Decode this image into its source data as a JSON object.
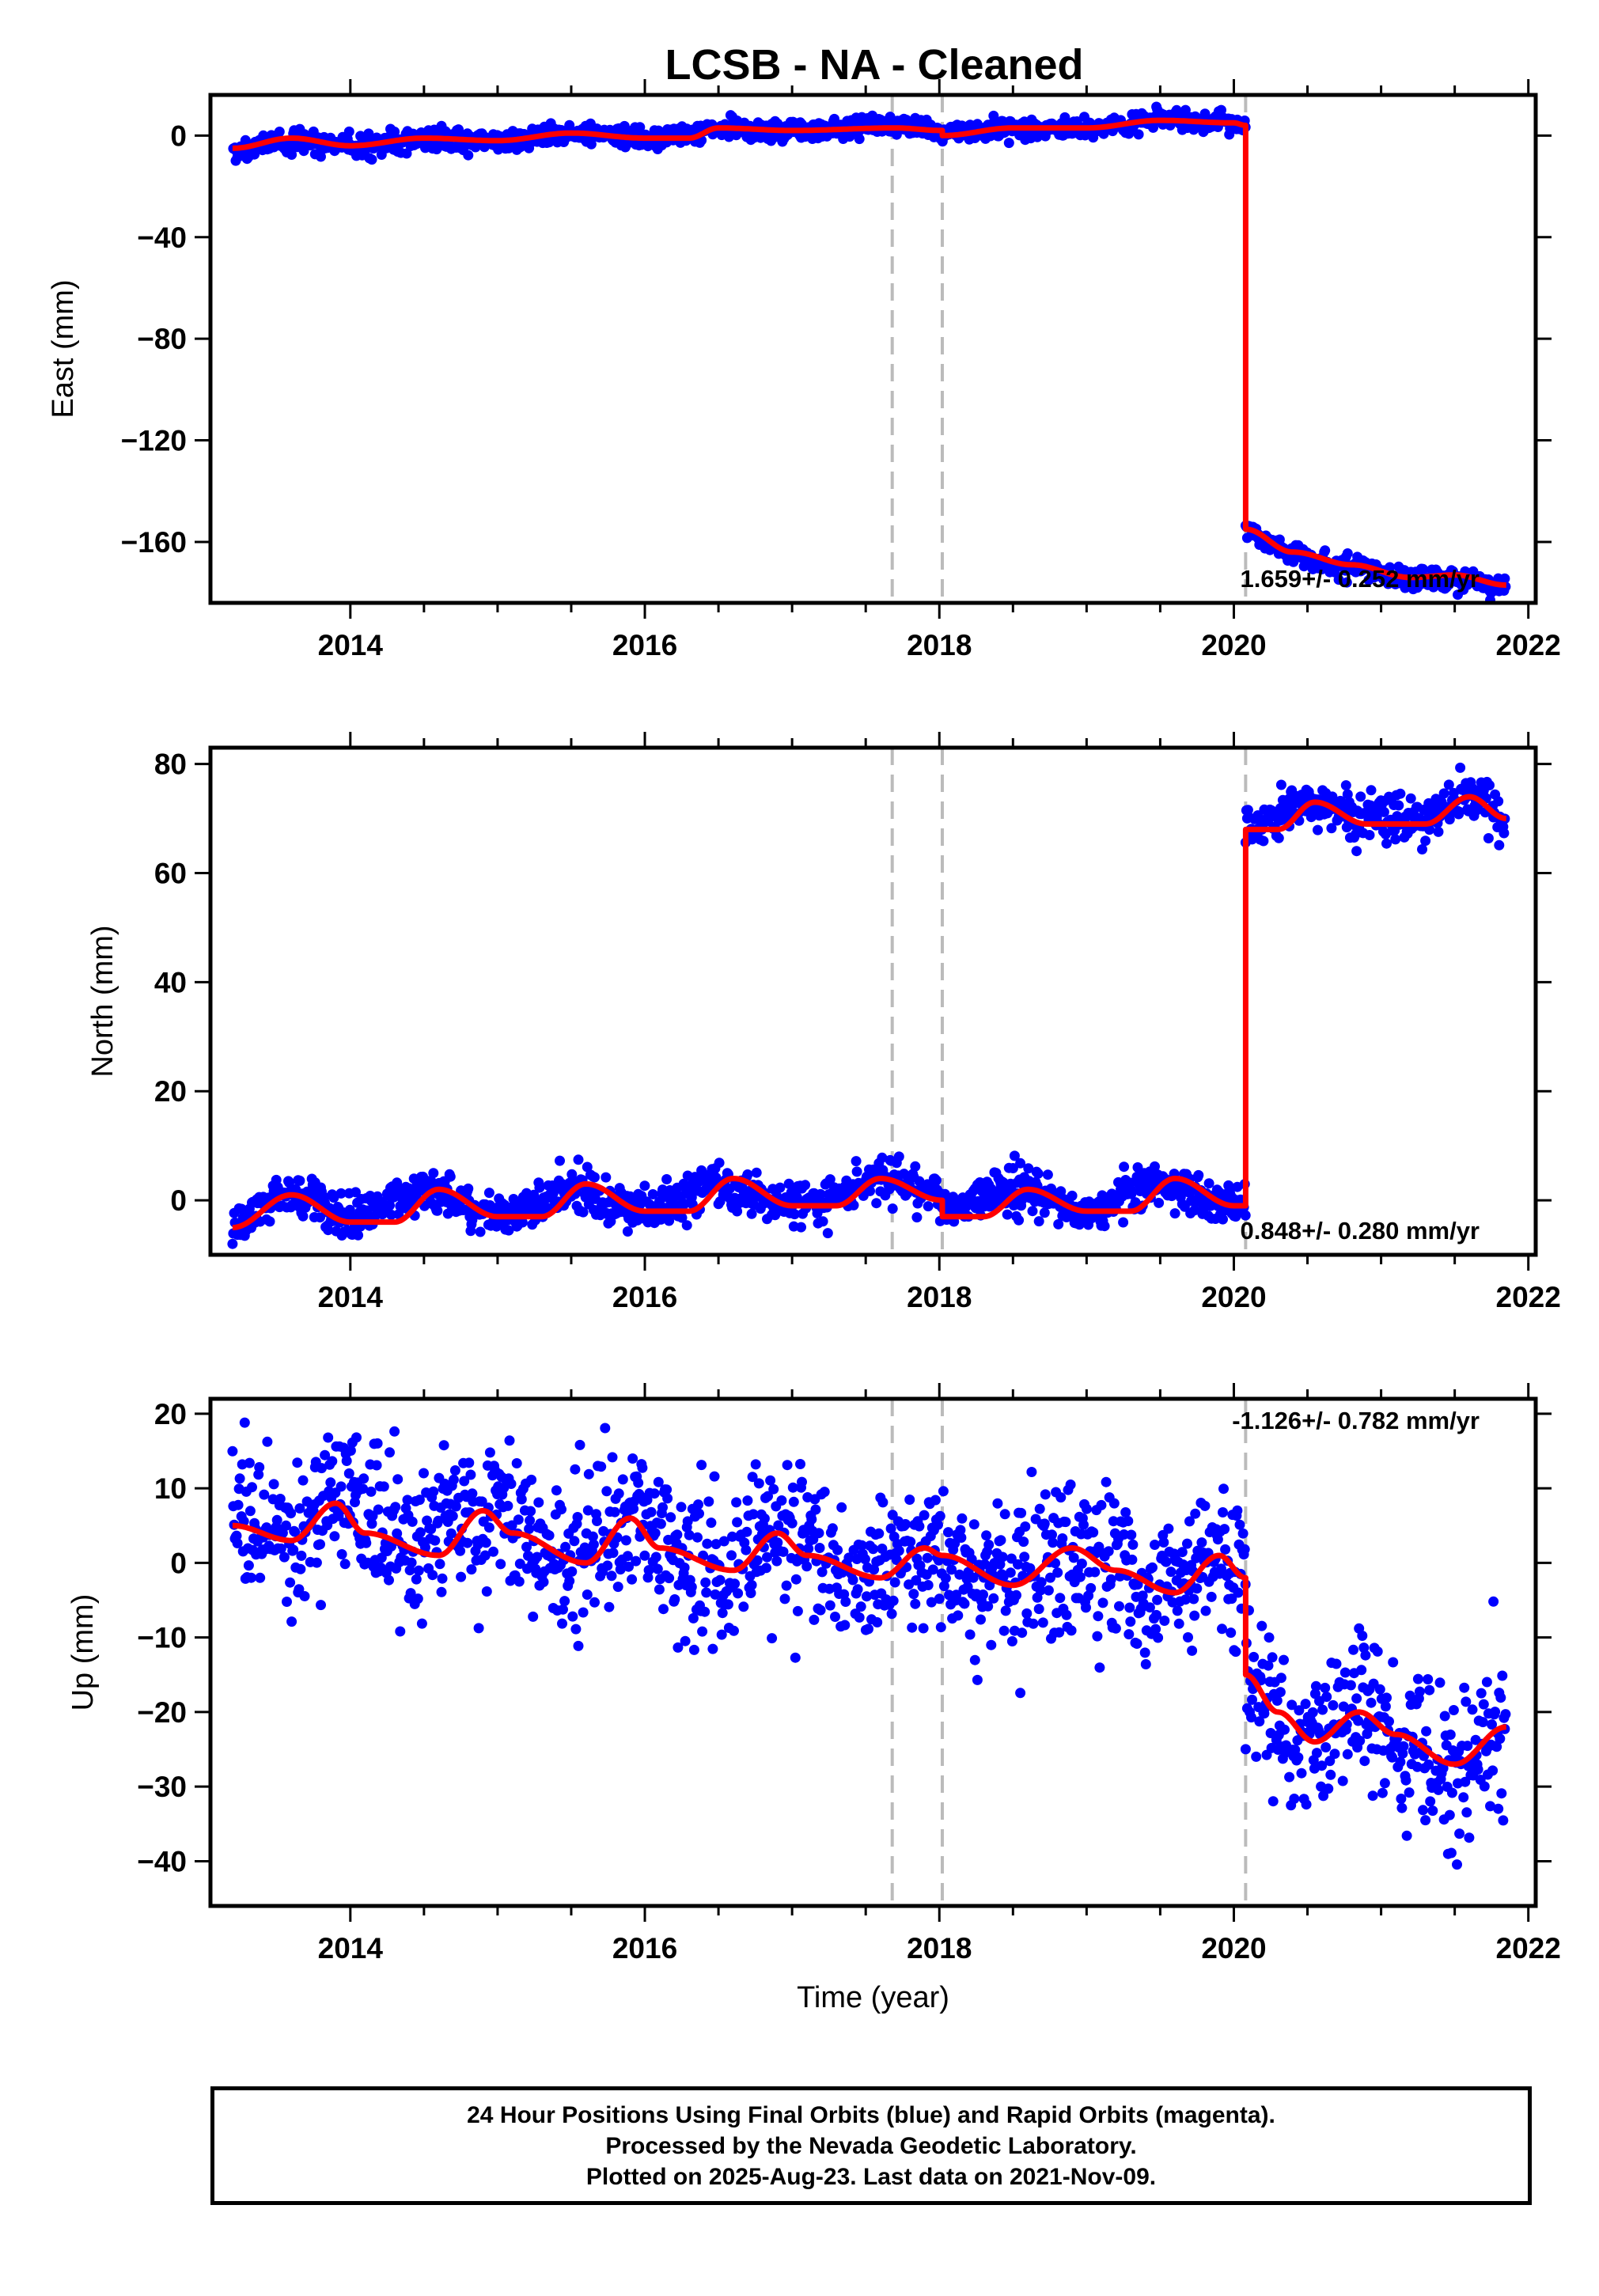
{
  "title": "LCSB  - NA - Cleaned",
  "colors": {
    "data_points": "#0000ff",
    "model_line": "#ff0000",
    "event_lines": "#bbbbbb",
    "frame": "#000000"
  },
  "chart_data": [
    {
      "type": "scatter",
      "ylabel": "East (mm)",
      "xlabel": "",
      "xlim": [
        2013.05,
        2022.05
      ],
      "ylim": [
        -184,
        16
      ],
      "x_ticks": [
        2014,
        2016,
        2018,
        2020,
        2022
      ],
      "x_tick_labels": [
        "2014",
        "2016",
        "2018",
        "2020",
        "2022"
      ],
      "y_ticks": [
        0,
        -40,
        -80,
        -120,
        -160
      ],
      "y_tick_labels": [
        "0",
        "−40",
        "−80",
        "−120",
        "−160"
      ],
      "rate_label": "1.659+/- 0.252 mm/yr",
      "rate_position": "bottom-right",
      "event_lines_x": [
        2017.68,
        2018.02,
        2020.08
      ],
      "series": [
        {
          "role": "daily positions",
          "style": "dots",
          "scatter": 2.0,
          "segments": [
            {
              "x": [
                2013.2,
                2013.6,
                2014.0,
                2014.5,
                2015.0,
                2015.5,
                2016.0,
                2016.5,
                2017.0,
                2017.7,
                2018.0
              ],
              "y": [
                -6,
                -2,
                -4,
                -2,
                -2,
                1,
                -1,
                3,
                2,
                4,
                2
              ]
            },
            {
              "x": [
                2018.0,
                2018.5,
                2019.0,
                2019.5,
                2020.0,
                2020.08
              ],
              "y": [
                1,
                3,
                3,
                6,
                5,
                4
              ]
            },
            {
              "x": [
                2020.08,
                2020.4,
                2020.8,
                2021.2,
                2021.5,
                2021.85
              ],
              "y": [
                -155,
                -165,
                -170,
                -175,
                -174,
                -178
              ]
            }
          ]
        },
        {
          "role": "model fit",
          "style": "line",
          "segments": [
            {
              "x": [
                2013.2,
                2013.6,
                2014.0,
                2014.5,
                2015.0,
                2015.5,
                2016.0,
                2016.3,
                2016.5,
                2017.0,
                2017.7,
                2018.02
              ],
              "y": [
                -5,
                -1,
                -4,
                -1,
                -2,
                1,
                -1,
                -1,
                3,
                2,
                3,
                2
              ]
            },
            {
              "x": [
                2018.02,
                2018.5,
                2019.0,
                2019.5,
                2020.0,
                2020.08
              ],
              "y": [
                0,
                3,
                3,
                6,
                5,
                4
              ]
            },
            {
              "x": [
                2020.08,
                2020.4,
                2020.8,
                2021.2,
                2021.5,
                2021.85
              ],
              "y": [
                -155,
                -164,
                -169,
                -174,
                -173,
                -177
              ]
            }
          ]
        }
      ]
    },
    {
      "type": "scatter",
      "ylabel": "North (mm)",
      "xlabel": "",
      "xlim": [
        2013.05,
        2022.05
      ],
      "ylim": [
        -10,
        83
      ],
      "x_ticks": [
        2014,
        2016,
        2018,
        2020,
        2022
      ],
      "x_tick_labels": [
        "2014",
        "2016",
        "2018",
        "2020",
        "2022"
      ],
      "y_ticks": [
        0,
        20,
        40,
        60,
        80
      ],
      "y_tick_labels": [
        "0",
        "20",
        "40",
        "60",
        "80"
      ],
      "rate_label": "0.848+/- 0.280 mm/yr",
      "rate_position": "bottom-right",
      "event_lines_x": [
        2017.68,
        2018.02,
        2020.08
      ],
      "series": [
        {
          "role": "daily positions",
          "style": "dots",
          "scatter": 2.0,
          "segments": [
            {
              "x": [
                2013.2,
                2013.6,
                2014.0,
                2014.5,
                2015.0,
                2015.5,
                2016.0,
                2016.5,
                2017.0,
                2017.6,
                2018.0
              ],
              "y": [
                -4,
                1,
                -3,
                2,
                -3,
                2,
                -2,
                3,
                -1,
                4,
                1
              ]
            },
            {
              "x": [
                2018.0,
                2018.5,
                2019.0,
                2019.5,
                2020.0,
                2020.08
              ],
              "y": [
                -2,
                2,
                -2,
                3,
                -1,
                -1
              ]
            },
            {
              "x": [
                2020.08,
                2020.5,
                2020.9,
                2021.3,
                2021.6,
                2021.85
              ],
              "y": [
                68,
                73,
                70,
                70,
                74,
                70
              ]
            }
          ]
        },
        {
          "role": "model fit",
          "style": "line",
          "segments": [
            {
              "x": [
                2013.2,
                2013.6,
                2014.0,
                2014.3,
                2014.6,
                2015.0,
                2015.3,
                2015.6,
                2016.0,
                2016.3,
                2016.6,
                2017.0,
                2017.3,
                2017.6,
                2018.02
              ],
              "y": [
                -5,
                1,
                -4,
                -4,
                2,
                -3,
                -3,
                3,
                -2,
                -2,
                4,
                -1,
                -1,
                4,
                0
              ]
            },
            {
              "x": [
                2018.02,
                2018.3,
                2018.6,
                2019.0,
                2019.3,
                2019.6,
                2020.0,
                2020.08
              ],
              "y": [
                -3,
                -3,
                2,
                -2,
                -2,
                4,
                -1,
                -1
              ]
            },
            {
              "x": [
                2020.08,
                2020.3,
                2020.55,
                2020.9,
                2021.3,
                2021.6,
                2021.85
              ],
              "y": [
                68,
                68,
                73,
                69,
                69,
                74,
                70
              ]
            }
          ]
        }
      ]
    },
    {
      "type": "scatter",
      "ylabel": "Up (mm)",
      "xlabel": "Time (year)",
      "xlim": [
        2013.05,
        2022.05
      ],
      "ylim": [
        -46,
        22
      ],
      "x_ticks": [
        2014,
        2016,
        2018,
        2020,
        2022
      ],
      "x_tick_labels": [
        "2014",
        "2016",
        "2018",
        "2020",
        "2022"
      ],
      "y_ticks": [
        20,
        10,
        0,
        -10,
        -20,
        -30,
        -40
      ],
      "y_tick_labels": [
        "20",
        "10",
        "0",
        "−10",
        "−20",
        "−30",
        "−40"
      ],
      "rate_label": "-1.126+/- 0.782 mm/yr",
      "rate_position": "top-right",
      "event_lines_x": [
        2017.68,
        2018.02,
        2020.08
      ],
      "series": [
        {
          "role": "daily positions",
          "style": "dots",
          "scatter": 5.0,
          "segments": [
            {
              "x": [
                2013.2,
                2013.6,
                2013.9,
                2014.4,
                2014.9,
                2015.5,
                2015.9,
                2016.5,
                2016.9,
                2017.5,
                2018.0
              ],
              "y": [
                5,
                3,
                8,
                2,
                7,
                1,
                6,
                -1,
                4,
                -2,
                1
              ]
            },
            {
              "x": [
                2018.0,
                2018.5,
                2018.9,
                2019.5,
                2019.9,
                2020.08
              ],
              "y": [
                0,
                -3,
                2,
                -4,
                1,
                -2
              ]
            },
            {
              "x": [
                2020.08,
                2020.5,
                2020.8,
                2021.2,
                2021.5,
                2021.85
              ],
              "y": [
                -15,
                -24,
                -20,
                -24,
                -27,
                -22
              ]
            }
          ]
        },
        {
          "role": "model fit",
          "style": "line",
          "segments": [
            {
              "x": [
                2013.2,
                2013.6,
                2013.9,
                2014.1,
                2014.6,
                2014.9,
                2015.1,
                2015.6,
                2015.9,
                2016.1,
                2016.6,
                2016.9,
                2017.1,
                2017.6,
                2017.9,
                2018.02
              ],
              "y": [
                5,
                3,
                8,
                4,
                1,
                7,
                4,
                0,
                6,
                2,
                -1,
                4,
                1,
                -2,
                2,
                1
              ]
            },
            {
              "x": [
                2018.02,
                2018.5,
                2018.9,
                2019.2,
                2019.6,
                2019.9,
                2020.08
              ],
              "y": [
                1,
                -3,
                2,
                -1,
                -4,
                1,
                -2
              ]
            },
            {
              "x": [
                2020.08,
                2020.3,
                2020.55,
                2020.85,
                2021.1,
                2021.5,
                2021.85
              ],
              "y": [
                -15,
                -20,
                -24,
                -20,
                -23,
                -27,
                -22
              ]
            }
          ]
        }
      ]
    }
  ],
  "footer": {
    "line1": "24 Hour Positions Using Final Orbits (blue) and Rapid Orbits (magenta).",
    "line2": "Processed by the Nevada Geodetic Laboratory.",
    "line3": "Plotted on 2025-Aug-23. Last data on 2021-Nov-09."
  }
}
